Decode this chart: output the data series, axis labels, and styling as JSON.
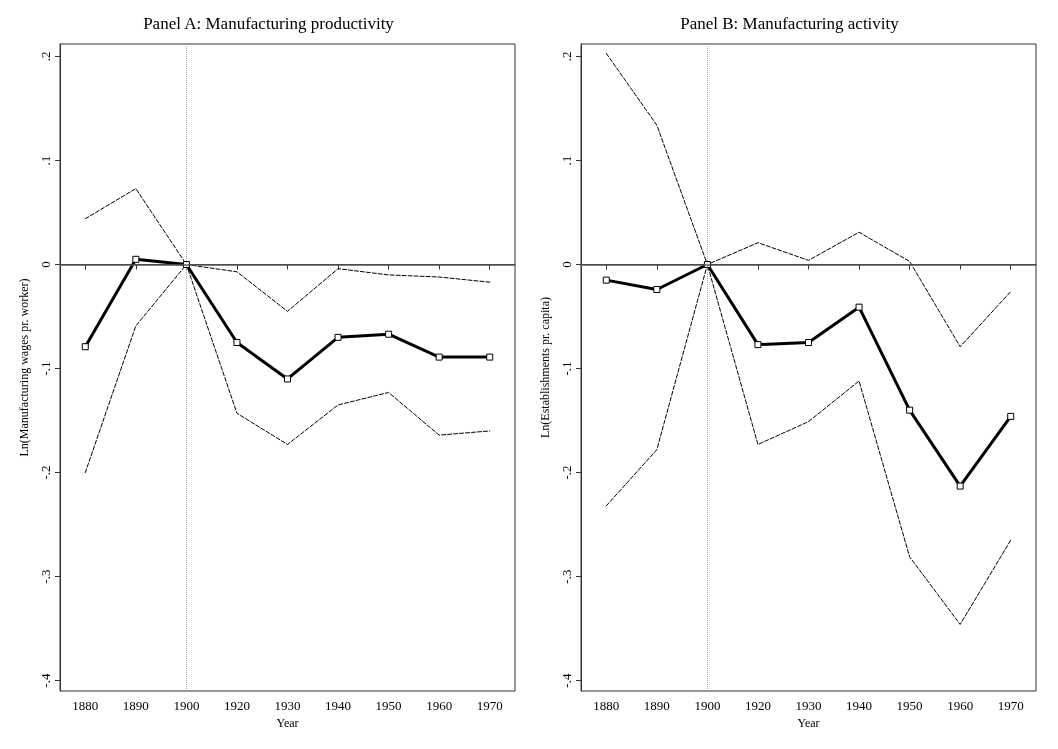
{
  "chart_data": [
    {
      "type": "line",
      "title": "Panel A: Manufacturing productivity",
      "xlabel": "Year",
      "ylabel": "Ln(Manufacturing wages pr. worker)",
      "categories": [
        "1880",
        "1890",
        "1900",
        "1920",
        "1930",
        "1940",
        "1950",
        "1960",
        "1970"
      ],
      "series": [
        {
          "color": "#000000",
          "marker": "square",
          "line_style": "solid",
          "values": [
            -0.079,
            0.005,
            0,
            -0.075,
            -0.11,
            -0.07,
            -0.067,
            -0.089,
            -0.089
          ]
        },
        {
          "color": "#000000",
          "marker": "none",
          "line_style": "dashed",
          "values": [
            0.044,
            0.073,
            0,
            -0.007,
            -0.045,
            -0.004,
            -0.01,
            -0.012,
            -0.017
          ]
        },
        {
          "color": "#000000",
          "marker": "none",
          "line_style": "dashed",
          "values": [
            -0.2,
            -0.059,
            0,
            -0.143,
            -0.173,
            -0.135,
            -0.123,
            -0.164,
            -0.16
          ]
        }
      ],
      "ylim": [
        -0.41,
        0.212
      ],
      "yticks": [
        {
          "value": -0.4,
          "label": "-.4"
        },
        {
          "value": -0.3,
          "label": "-.3"
        },
        {
          "value": -0.2,
          "label": "-.2"
        },
        {
          "value": -0.1,
          "label": "-.1"
        },
        0,
        {
          "value": 0.1,
          "label": ".1"
        },
        {
          "value": 0.2,
          "label": ".2"
        }
      ],
      "ref_lines": [
        {
          "axis": "y",
          "value": 0,
          "color": "#555555",
          "line_style": "solid"
        },
        {
          "axis": "x",
          "value": "1900",
          "color": "#aaaaaa",
          "line_style": "dotted"
        }
      ],
      "grid": false
    },
    {
      "type": "line",
      "title": "Panel B: Manufacturing activity",
      "xlabel": "Year",
      "ylabel": "Ln(Establishments pr. capita)",
      "categories": [
        "1880",
        "1890",
        "1900",
        "1920",
        "1930",
        "1940",
        "1950",
        "1960",
        "1970"
      ],
      "series": [
        {
          "color": "#000000",
          "marker": "square",
          "line_style": "solid",
          "values": [
            -0.015,
            -0.024,
            0,
            -0.077,
            -0.075,
            -0.041,
            -0.14,
            -0.213,
            -0.146
          ]
        },
        {
          "color": "#000000",
          "marker": "none",
          "line_style": "dashed",
          "values": [
            0.203,
            0.134,
            0,
            0.021,
            0.004,
            0.031,
            0.003,
            -0.079,
            -0.026
          ]
        },
        {
          "color": "#000000",
          "marker": "none",
          "line_style": "dashed",
          "values": [
            -0.232,
            -0.178,
            0,
            -0.173,
            -0.151,
            -0.112,
            -0.281,
            -0.346,
            -0.265
          ]
        }
      ],
      "ylim": [
        -0.41,
        0.212
      ],
      "yticks": [
        {
          "value": -0.4,
          "label": "-.4"
        },
        {
          "value": -0.3,
          "label": "-.3"
        },
        {
          "value": -0.2,
          "label": "-.2"
        },
        {
          "value": -0.1,
          "label": "-.1"
        },
        0,
        {
          "value": 0.1,
          "label": ".1"
        },
        {
          "value": 0.2,
          "label": ".2"
        }
      ],
      "ref_lines": [
        {
          "axis": "y",
          "value": 0,
          "color": "#555555",
          "line_style": "solid"
        },
        {
          "axis": "x",
          "value": "1900",
          "color": "#aaaaaa",
          "line_style": "dotted"
        }
      ],
      "grid": false
    }
  ]
}
